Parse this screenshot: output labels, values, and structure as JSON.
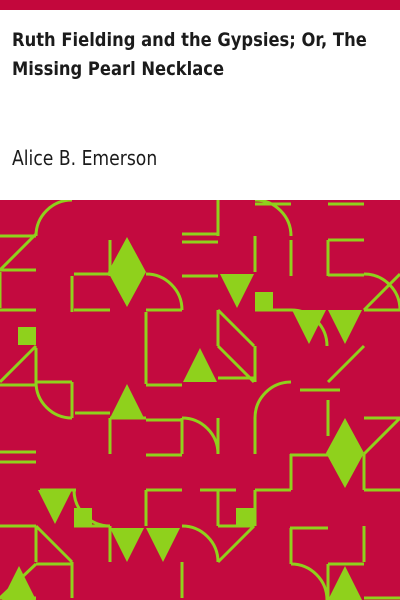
{
  "book": {
    "title": "Ruth Fielding and the Gypsies; Or, The Missing Pearl Necklace",
    "author": "Alice B. Emerson"
  },
  "colors": {
    "accent": "#c3073c",
    "pattern_background": "#c30a3f",
    "pattern_lines": "#8fd11c",
    "text": "#1b1b1b"
  },
  "cover_art": {
    "icon": "geometric-pattern-icon"
  }
}
